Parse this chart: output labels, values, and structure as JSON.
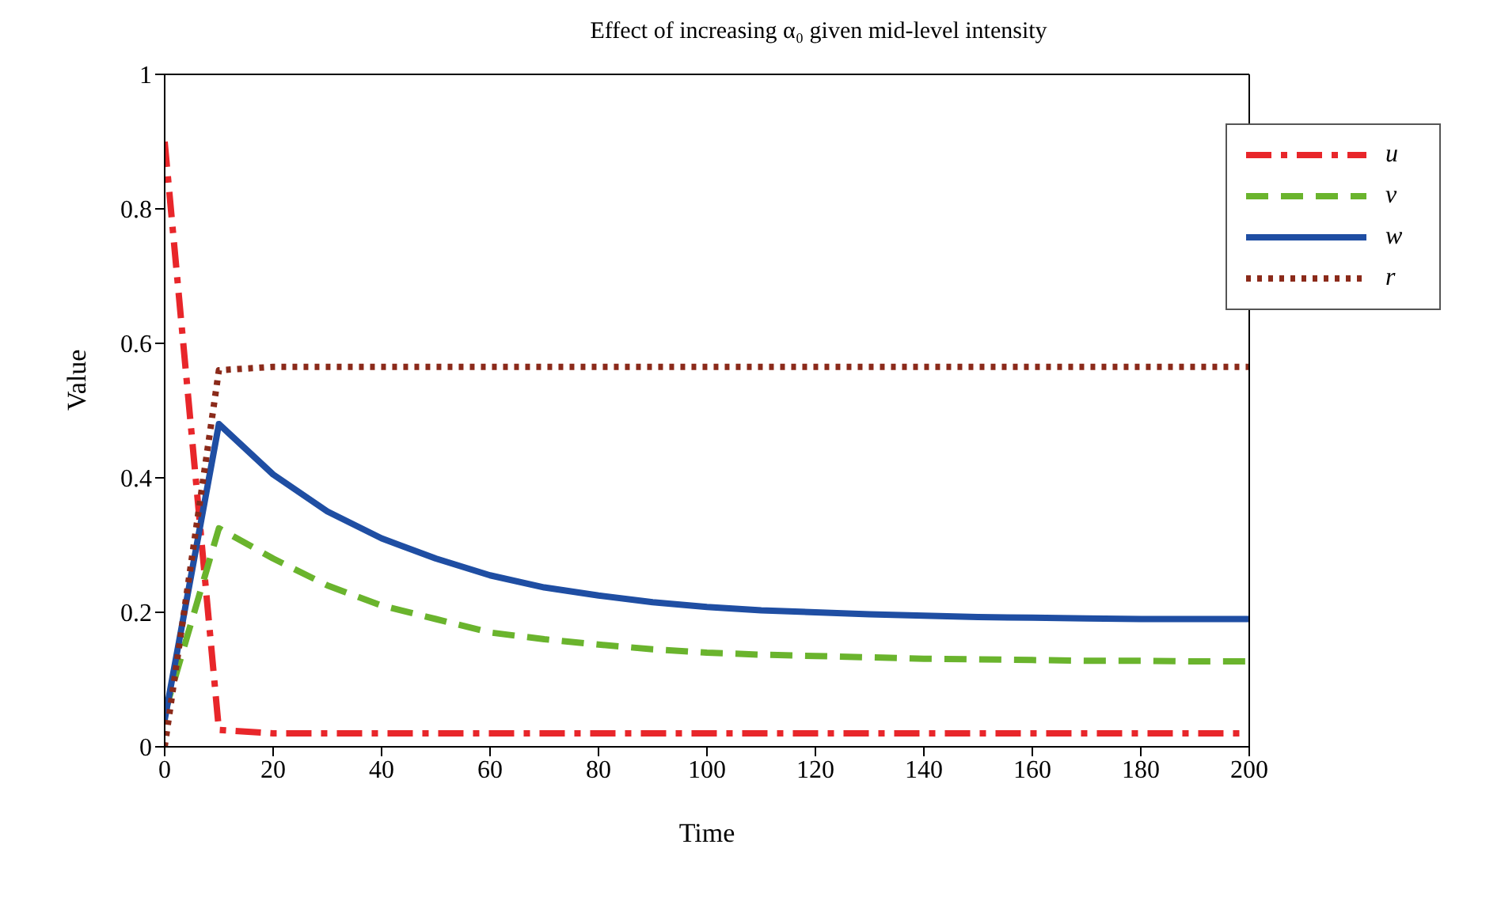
{
  "chart_data": {
    "type": "line",
    "title": "Effect of increasing α₀ given mid-level intensity",
    "xlabel": "Time",
    "ylabel": "Value",
    "x": [
      0,
      10,
      20,
      30,
      40,
      50,
      60,
      70,
      80,
      90,
      100,
      110,
      120,
      130,
      140,
      150,
      160,
      170,
      180,
      190,
      200
    ],
    "series": [
      {
        "name": "u",
        "color": "#e8262a",
        "line_style": "dashdot",
        "values": [
          0.9,
          0.025,
          0.02,
          0.02,
          0.02,
          0.02,
          0.02,
          0.02,
          0.02,
          0.02,
          0.02,
          0.02,
          0.02,
          0.02,
          0.02,
          0.02,
          0.02,
          0.02,
          0.02,
          0.02,
          0.02
        ]
      },
      {
        "name": "v",
        "color": "#6ab42d",
        "line_style": "dashed",
        "values": [
          0.05,
          0.325,
          0.28,
          0.24,
          0.21,
          0.19,
          0.17,
          0.16,
          0.152,
          0.145,
          0.14,
          0.137,
          0.135,
          0.133,
          0.131,
          0.13,
          0.129,
          0.128,
          0.128,
          0.127,
          0.127
        ]
      },
      {
        "name": "w",
        "color": "#1f4ea3",
        "line_style": "solid",
        "values": [
          0.04,
          0.48,
          0.405,
          0.35,
          0.31,
          0.28,
          0.255,
          0.237,
          0.225,
          0.215,
          0.208,
          0.203,
          0.2,
          0.197,
          0.195,
          0.193,
          0.192,
          0.191,
          0.19,
          0.19,
          0.19
        ]
      },
      {
        "name": "r",
        "color": "#8b2a1a",
        "line_style": "dotted",
        "values": [
          0,
          0.56,
          0.565,
          0.565,
          0.565,
          0.565,
          0.565,
          0.565,
          0.565,
          0.565,
          0.565,
          0.565,
          0.565,
          0.565,
          0.565,
          0.565,
          0.565,
          0.565,
          0.565,
          0.565,
          0.565
        ]
      }
    ],
    "xlim": [
      0,
      200
    ],
    "xticks": [
      0,
      20,
      40,
      60,
      80,
      100,
      120,
      140,
      160,
      180,
      200
    ],
    "ylim": [
      0,
      1
    ],
    "yticks": [
      0,
      0.2,
      0.4,
      0.6,
      0.8,
      1
    ],
    "grid": false,
    "legend": "top right",
    "marker": "none"
  }
}
